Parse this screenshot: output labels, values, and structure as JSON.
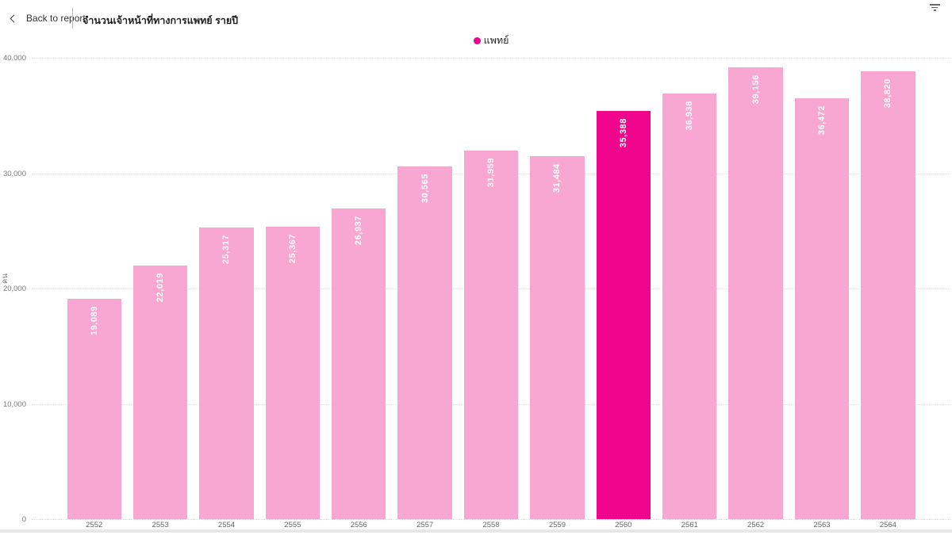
{
  "header": {
    "back_label": "Back to report",
    "title": "จำนวนเจ้าหน้าที่ทางการแพทย์ รายปี"
  },
  "legend": {
    "label": "แพทย์",
    "color": "#f0058c"
  },
  "y_axis": {
    "title": "คน",
    "ticks": [
      "40,000",
      "30,000",
      "20,000",
      "10,000",
      "0"
    ]
  },
  "chart_data": {
    "type": "bar",
    "title": "จำนวนเจ้าหน้าที่ทางการแพทย์ รายปี",
    "series_name": "แพทย์",
    "categories": [
      "2552",
      "2553",
      "2554",
      "2555",
      "2556",
      "2557",
      "2558",
      "2559",
      "2560",
      "2561",
      "2562",
      "2563",
      "2564"
    ],
    "values": [
      19089,
      22019,
      25317,
      25367,
      26937,
      30565,
      31959,
      31484,
      35388,
      36938,
      39156,
      36472,
      38820
    ],
    "labels": [
      "19,089",
      "22,019",
      "25,317",
      "25,367",
      "26,937",
      "30,565",
      "31,959",
      "31,484",
      "35,388",
      "36,938",
      "39,156",
      "36,472",
      "38,820"
    ],
    "highlight_index": 8,
    "xlabel": "",
    "ylabel": "คน",
    "ylim": [
      0,
      40000
    ],
    "grid": "dotted horizontal lines every 10,000",
    "legend_position": "top center",
    "bar_color": "#f8a6d2",
    "highlight_color": "#f0058c",
    "label_color": "#ffffff",
    "label_orientation": "rotated -90, inside top of bar"
  }
}
